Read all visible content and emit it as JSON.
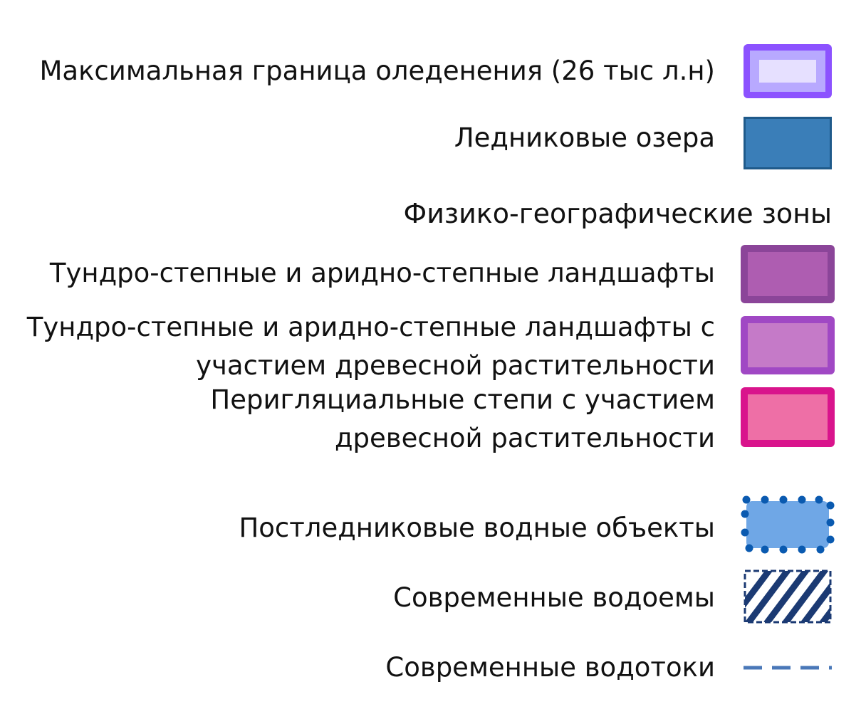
{
  "legend": {
    "items": [
      {
        "label": "Максимальная граница оледенения (26 тыс л.н)",
        "icon": "glaciation-boundary-swatch",
        "fill": "#e6e0ff",
        "inner": "#b8a9ff",
        "stroke": "#8c52ff"
      },
      {
        "label": "Ледниковые озера",
        "icon": "glacial-lake-swatch",
        "fill": "#3a7eb8",
        "stroke": "#1f5a8a"
      }
    ],
    "section_title": "Физико-географические зоны",
    "zones": [
      {
        "label": "Тундро-степные и аридно-степные ландшафты",
        "icon": "tundra-steppe-swatch",
        "fill": "#ae5db1",
        "stroke": "#8b4599"
      },
      {
        "label_line1": "Тундро-степные и аридно-степные ландшафты с",
        "label_line2": "участием древесной растительности",
        "icon": "tundra-steppe-woody-swatch",
        "fill": "#c57ac8",
        "stroke": "#a048c4"
      },
      {
        "label_line1": "Перигляциальные степи с участием",
        "label_line2": "древесной растительности",
        "icon": "periglacial-steppe-swatch",
        "fill": "#ee6fa6",
        "stroke": "#d9148c"
      }
    ],
    "water": [
      {
        "label": "Постледниковые водные объекты",
        "icon": "postglacial-water-swatch",
        "fill": "#6fa7e6",
        "stroke": "#0a5ab0"
      },
      {
        "label": "Современные водоемы",
        "icon": "modern-reservoir-hatch-swatch",
        "fill": "#ffffff",
        "stroke": "#1b3a73"
      },
      {
        "label": "Современные водотоки",
        "icon": "modern-watercourse-dash-swatch",
        "stroke": "#4a78b8"
      }
    ]
  }
}
